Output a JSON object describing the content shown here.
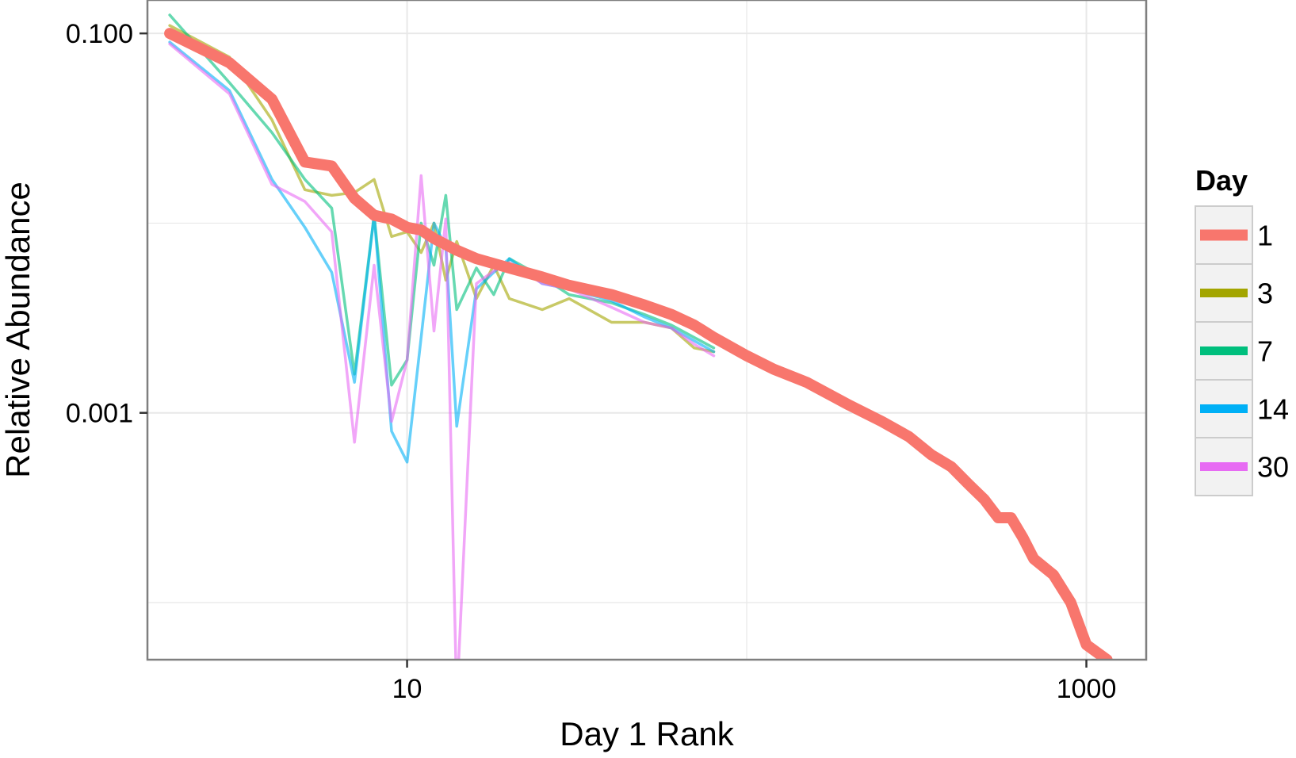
{
  "chart_data": {
    "type": "line",
    "xlabel": "Day 1 Rank",
    "ylabel": "Relative Abundance",
    "x_scale": "log10",
    "y_scale": "log10",
    "xlim": [
      1.72,
      1500
    ],
    "ylim": [
      5e-05,
      0.15
    ],
    "x_ticks": [
      {
        "value": 10,
        "label": "10"
      },
      {
        "value": 1000,
        "label": "1000"
      }
    ],
    "y_ticks": [
      {
        "value": 0.1,
        "label": "0.100"
      },
      {
        "value": 0.001,
        "label": "0.001"
      }
    ],
    "grid": true,
    "legend": {
      "title": "Day",
      "position": "right",
      "entries": [
        {
          "label": "1",
          "color": "#F8766D"
        },
        {
          "label": "3",
          "color": "#A3A500"
        },
        {
          "label": "7",
          "color": "#00BF7D"
        },
        {
          "label": "14",
          "color": "#00B0F6"
        },
        {
          "label": "30",
          "color": "#E76BF3"
        }
      ]
    },
    "series": [
      {
        "name": "1",
        "color": "#F8766D",
        "points": [
          [
            2,
            0.1
          ],
          [
            3,
            0.07
          ],
          [
            4,
            0.045
          ],
          [
            5,
            0.021
          ],
          [
            6,
            0.02
          ],
          [
            7,
            0.0135
          ],
          [
            8,
            0.011
          ],
          [
            9,
            0.0105
          ],
          [
            10,
            0.0095
          ],
          [
            11,
            0.0092
          ],
          [
            12,
            0.0083
          ],
          [
            14,
            0.0072
          ],
          [
            16,
            0.0065
          ],
          [
            20,
            0.0058
          ],
          [
            25,
            0.0052
          ],
          [
            30,
            0.0047
          ],
          [
            40,
            0.0042
          ],
          [
            50,
            0.0037
          ],
          [
            60,
            0.0033
          ],
          [
            70,
            0.0029
          ],
          [
            80,
            0.0025
          ],
          [
            100,
            0.002
          ],
          [
            120,
            0.0017
          ],
          [
            150,
            0.00145
          ],
          [
            200,
            0.0011
          ],
          [
            250,
            0.0009
          ],
          [
            300,
            0.00075
          ],
          [
            350,
            0.0006
          ],
          [
            400,
            0.00052
          ],
          [
            450,
            0.00042
          ],
          [
            500,
            0.00035
          ],
          [
            550,
            0.00028
          ],
          [
            600,
            0.00028
          ],
          [
            650,
            0.00022
          ],
          [
            700,
            0.00017
          ],
          [
            800,
            0.00014
          ],
          [
            900,
            0.0001
          ],
          [
            1000,
            6e-05
          ],
          [
            1150,
            5e-05
          ]
        ]
      },
      {
        "name": "3",
        "color": "#A3A500",
        "points": [
          [
            2,
            0.11
          ],
          [
            3,
            0.075
          ],
          [
            4,
            0.035
          ],
          [
            5,
            0.015
          ],
          [
            6,
            0.014
          ],
          [
            7,
            0.0145
          ],
          [
            8,
            0.017
          ],
          [
            9,
            0.0085
          ],
          [
            10,
            0.009
          ],
          [
            11,
            0.007
          ],
          [
            12,
            0.01
          ],
          [
            13,
            0.005
          ],
          [
            14,
            0.008
          ],
          [
            16,
            0.004
          ],
          [
            18,
            0.006
          ],
          [
            20,
            0.004
          ],
          [
            25,
            0.0035
          ],
          [
            30,
            0.004
          ],
          [
            40,
            0.003
          ],
          [
            50,
            0.003
          ],
          [
            60,
            0.0028
          ],
          [
            70,
            0.0022
          ],
          [
            80,
            0.0021
          ]
        ]
      },
      {
        "name": "7",
        "color": "#00BF7D",
        "points": [
          [
            2,
            0.125
          ],
          [
            3,
            0.055
          ],
          [
            4,
            0.03
          ],
          [
            5,
            0.017
          ],
          [
            6,
            0.012
          ],
          [
            7,
            0.0016
          ],
          [
            8,
            0.011
          ],
          [
            9,
            0.0014
          ],
          [
            10,
            0.0019
          ],
          [
            11,
            0.01
          ],
          [
            12,
            0.006
          ],
          [
            13,
            0.014
          ],
          [
            14,
            0.0035
          ],
          [
            16,
            0.0058
          ],
          [
            18,
            0.0042
          ],
          [
            20,
            0.0065
          ],
          [
            25,
            0.0052
          ],
          [
            30,
            0.0042
          ],
          [
            40,
            0.0038
          ],
          [
            50,
            0.0033
          ],
          [
            60,
            0.0029
          ],
          [
            70,
            0.0025
          ],
          [
            80,
            0.0022
          ]
        ]
      },
      {
        "name": "14",
        "color": "#00B0F6",
        "points": [
          [
            2,
            0.09
          ],
          [
            3,
            0.05
          ],
          [
            4,
            0.017
          ],
          [
            5,
            0.0095
          ],
          [
            6,
            0.0055
          ],
          [
            7,
            0.00145
          ],
          [
            8,
            0.011
          ],
          [
            9,
            0.0008
          ],
          [
            10,
            0.00055
          ],
          [
            11,
            0.0025
          ],
          [
            12,
            0.01
          ],
          [
            13,
            0.0075
          ],
          [
            14,
            0.00085
          ],
          [
            16,
            0.0045
          ],
          [
            18,
            0.0055
          ],
          [
            20,
            0.0065
          ],
          [
            25,
            0.0048
          ],
          [
            30,
            0.0045
          ],
          [
            40,
            0.0039
          ],
          [
            50,
            0.0032
          ],
          [
            60,
            0.0028
          ],
          [
            70,
            0.0024
          ],
          [
            80,
            0.0021
          ]
        ]
      },
      {
        "name": "30",
        "color": "#E76BF3",
        "points": [
          [
            2,
            0.088
          ],
          [
            3,
            0.048
          ],
          [
            4,
            0.016
          ],
          [
            5,
            0.013
          ],
          [
            6,
            0.009
          ],
          [
            7,
            0.0007
          ],
          [
            8,
            0.006
          ],
          [
            9,
            0.0009
          ],
          [
            10,
            0.0019
          ],
          [
            11,
            0.0178
          ],
          [
            12,
            0.0027
          ],
          [
            13,
            0.0105
          ],
          [
            14,
            3e-05
          ],
          [
            16,
            0.0048
          ],
          [
            18,
            0.0056
          ],
          [
            20,
            0.0062
          ],
          [
            25,
            0.0048
          ],
          [
            30,
            0.0045
          ],
          [
            40,
            0.0036
          ],
          [
            50,
            0.003
          ],
          [
            60,
            0.0028
          ],
          [
            70,
            0.0023
          ],
          [
            80,
            0.002
          ]
        ]
      }
    ]
  }
}
